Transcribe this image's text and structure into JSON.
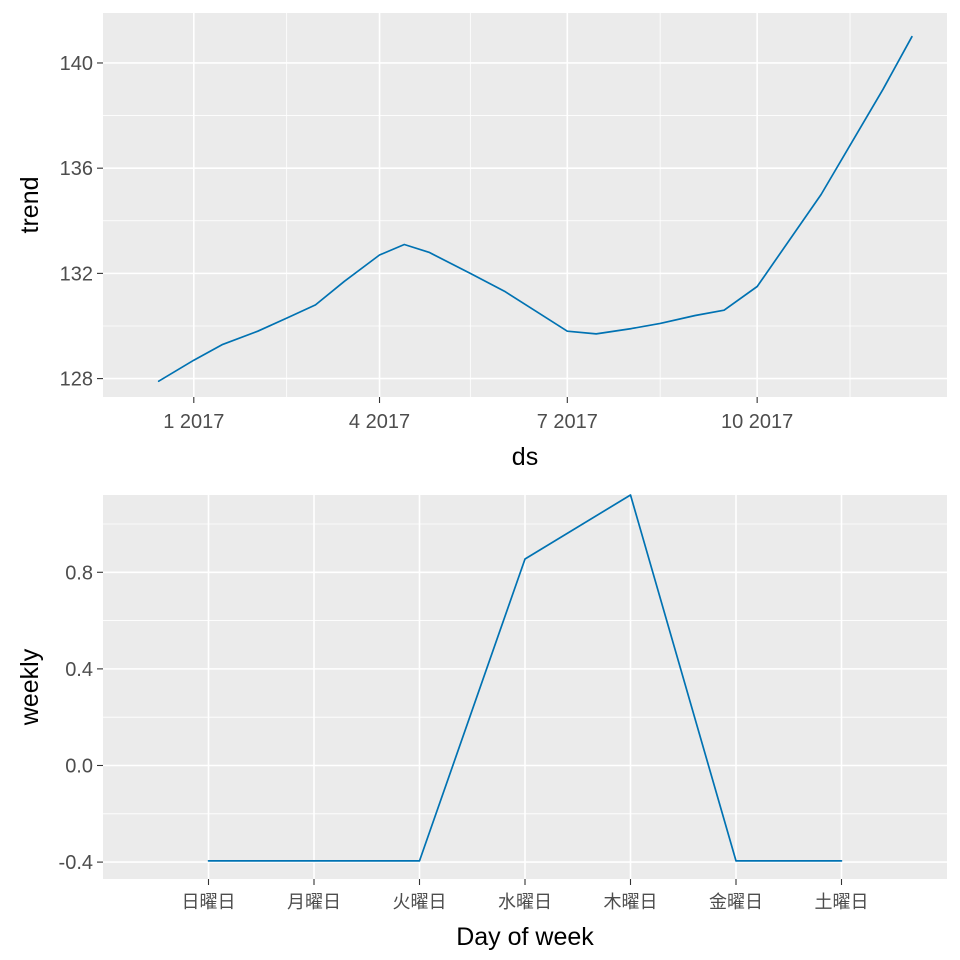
{
  "colors": {
    "series": "#0072B2",
    "panel_background": "#EBEBEB",
    "grid": "#FFFFFF",
    "tick_label": "#4D4D4D",
    "axis_title": "#000000"
  },
  "chart_data": [
    {
      "type": "line",
      "title": "",
      "xlabel": "ds",
      "ylabel": "trend",
      "x_type": "date",
      "xlim": [
        "2016-11-18",
        "2018-01-01"
      ],
      "ylim": [
        127.3,
        141.9
      ],
      "x_ticks": [
        {
          "value": "2017-01-01",
          "label": "1 2017"
        },
        {
          "value": "2017-04-01",
          "label": "4 2017"
        },
        {
          "value": "2017-07-01",
          "label": "7 2017"
        },
        {
          "value": "2017-10-01",
          "label": "10 2017"
        }
      ],
      "x_minor_ticks": [
        "2016-11-15",
        "2017-02-15",
        "2017-05-15",
        "2017-08-15",
        "2017-11-15"
      ],
      "y_ticks": [
        128,
        132,
        136,
        140
      ],
      "y_minor_ticks": [
        130,
        134,
        138
      ],
      "grid": true,
      "series": [
        {
          "x": [
            "2016-12-15",
            "2017-01-01",
            "2017-01-15",
            "2017-02-01",
            "2017-02-15",
            "2017-03-01",
            "2017-03-15",
            "2017-04-01",
            "2017-04-13",
            "2017-04-25",
            "2017-05-15",
            "2017-06-01",
            "2017-06-15",
            "2017-07-01",
            "2017-07-15",
            "2017-08-01",
            "2017-08-15",
            "2017-09-01",
            "2017-09-15",
            "2017-10-01",
            "2017-11-01",
            "2017-12-01",
            "2017-12-15"
          ],
          "y": [
            127.9,
            128.7,
            129.3,
            129.8,
            130.3,
            130.8,
            131.7,
            132.7,
            133.1,
            132.8,
            132.0,
            131.3,
            130.6,
            129.8,
            129.7,
            129.9,
            130.1,
            130.4,
            130.6,
            131.5,
            135.0,
            139.0,
            141.0
          ]
        }
      ]
    },
    {
      "type": "line",
      "title": "",
      "xlabel": "Day of week",
      "ylabel": "weekly",
      "categories": [
        "日曜日",
        "月曜日",
        "火曜日",
        "水曜日",
        "木曜日",
        "金曜日",
        "土曜日"
      ],
      "ylim": [
        -0.47,
        1.12
      ],
      "y_ticks": [
        -0.4,
        0.0,
        0.4,
        0.8
      ],
      "y_tick_labels": [
        "-0.4",
        "0.0",
        "0.4",
        "0.8"
      ],
      "y_minor_ticks": [
        -0.2,
        0.2,
        0.6,
        1.0
      ],
      "grid": true,
      "series": [
        {
          "values": [
            -0.395,
            -0.395,
            -0.395,
            0.855,
            1.12,
            -0.395,
            -0.395
          ]
        }
      ]
    }
  ]
}
